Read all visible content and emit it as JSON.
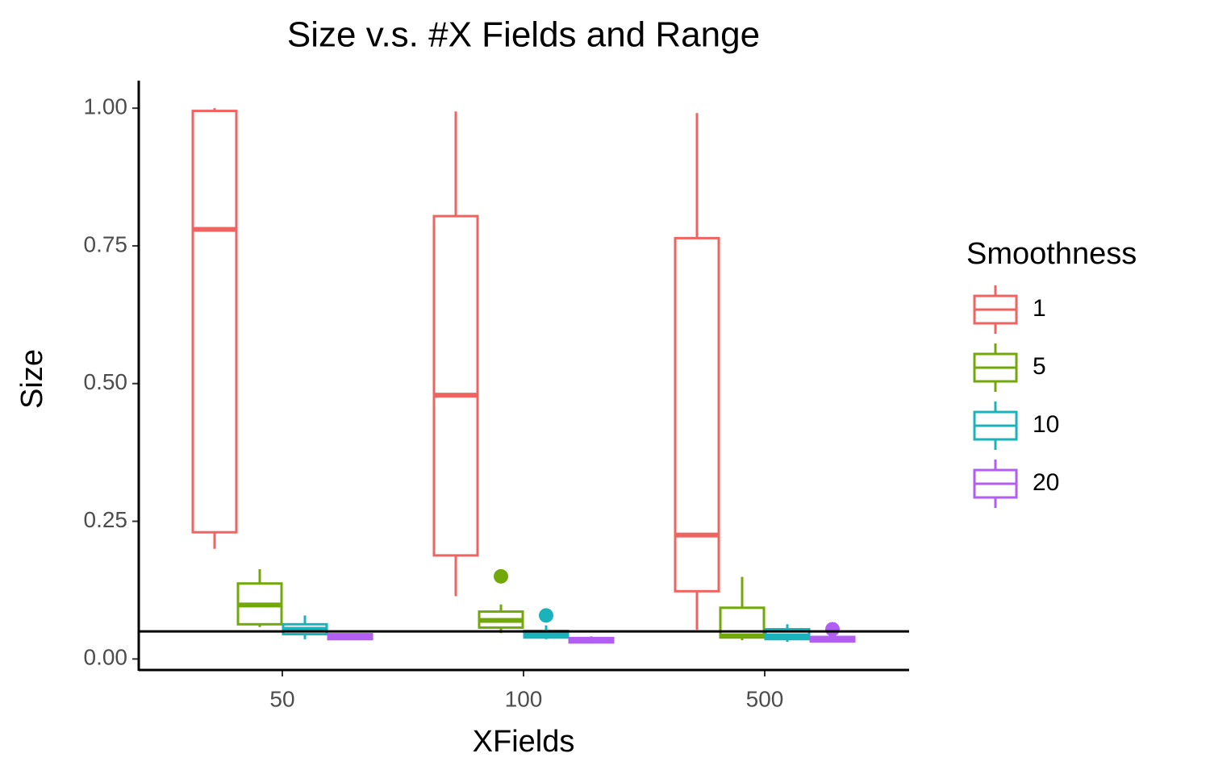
{
  "chart_data": {
    "type": "box",
    "title": "Size v.s.  #X Fields and Range",
    "x_label": "XFields",
    "y_label": "Size",
    "categories": [
      "50",
      "100",
      "500"
    ],
    "ylim": [
      -0.02,
      1.05
    ],
    "yticks": [
      {
        "value": 0,
        "label": "0.00"
      },
      {
        "value": 0.25,
        "label": "0.25"
      },
      {
        "value": 0.5,
        "label": "0.50"
      },
      {
        "value": 0.75,
        "label": "0.75"
      },
      {
        "value": 1,
        "label": "1.00"
      }
    ],
    "hline": 0.05,
    "legend_title": "Smoothness",
    "legend_position": "right",
    "series": [
      {
        "name": "1",
        "color": "#ef6461",
        "lower": [
          0.2,
          0.114,
          0.053
        ],
        "q1": [
          0.23,
          0.188,
          0.123
        ],
        "median": [
          0.78,
          0.479,
          0.225
        ],
        "q3": [
          0.995,
          0.804,
          0.764
        ],
        "upper": [
          1.0,
          0.994,
          0.991
        ],
        "outliers": [
          [],
          [],
          []
        ]
      },
      {
        "name": "5",
        "color": "#72a80a",
        "lower": [
          0.058,
          0.047,
          0.034
        ],
        "q1": [
          0.063,
          0.057,
          0.039
        ],
        "median": [
          0.098,
          0.07,
          0.042
        ],
        "q3": [
          0.137,
          0.086,
          0.093
        ],
        "upper": [
          0.163,
          0.099,
          0.149
        ],
        "outliers": [
          [],
          [
            0.15
          ],
          []
        ]
      },
      {
        "name": "10",
        "color": "#1bb3bb",
        "lower": [
          0.036,
          0.036,
          0.031
        ],
        "q1": [
          0.045,
          0.039,
          0.036
        ],
        "median": [
          0.054,
          0.044,
          0.042
        ],
        "q3": [
          0.063,
          0.051,
          0.054
        ],
        "upper": [
          0.079,
          0.061,
          0.063
        ],
        "outliers": [
          [],
          [
            0.079
          ],
          []
        ]
      },
      {
        "name": "20",
        "color": "#b35ef2",
        "lower": [
          0.035,
          0.028,
          0.03
        ],
        "q1": [
          0.036,
          0.03,
          0.032
        ],
        "median": [
          0.04,
          0.033,
          0.035
        ],
        "q3": [
          0.045,
          0.038,
          0.04
        ],
        "upper": [
          0.046,
          0.041,
          0.045
        ],
        "outliers": [
          [],
          [],
          [
            0.054
          ]
        ]
      }
    ]
  }
}
